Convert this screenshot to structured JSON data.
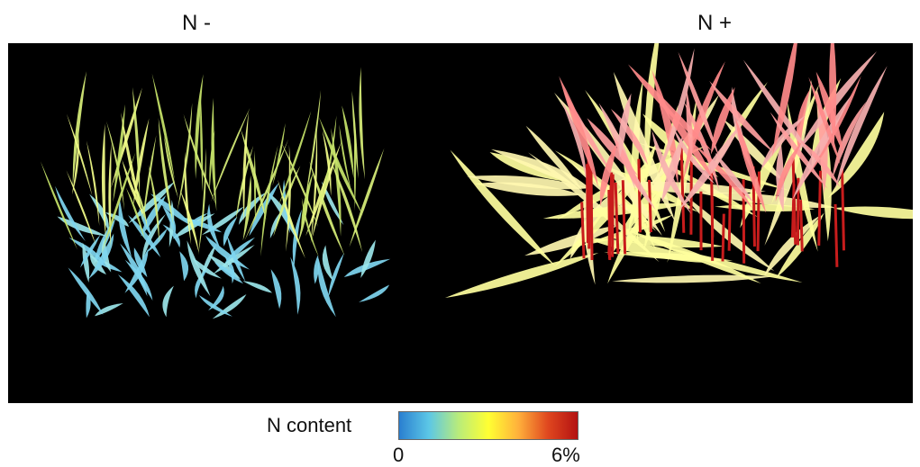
{
  "panels": [
    {
      "title": "N -"
    },
    {
      "title": "N +"
    }
  ],
  "legend": {
    "label": "N content",
    "min_label": "0",
    "max_label": "6%",
    "colormap": [
      "#2a7fd0",
      "#5cc7e6",
      "#b9ec7a",
      "#ffff33",
      "#ffb13b",
      "#e0471f",
      "#b31212"
    ]
  },
  "colors": {
    "background": "#000000",
    "low_n_leaves": [
      "#7fd6f0",
      "#9be6ea",
      "#d9f07a",
      "#f4ff8a",
      "#c8e56a"
    ],
    "high_n_leaves": [
      "#ffff9e",
      "#fff7b0",
      "#ff9e9e",
      "#ff8a8a",
      "#f7b0b0",
      "#c81c1c"
    ]
  }
}
